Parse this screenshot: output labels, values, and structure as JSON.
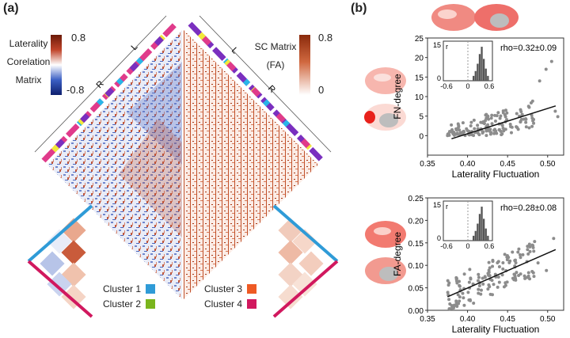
{
  "panel_a": {
    "label": "(a)",
    "left_colorbar": {
      "title_lines": [
        "Laterality",
        "Corelation",
        "Matrix"
      ],
      "max": "0.8",
      "min": "-0.8"
    },
    "right_colorbar": {
      "title_lines": [
        "SC Matrix",
        "(FA)"
      ],
      "max": "0.8",
      "min": "0"
    },
    "hemisphere_labels": {
      "left": "L",
      "right": "R"
    },
    "clusters": [
      {
        "name": "Cluster 1",
        "color": "#2f9bd7"
      },
      {
        "name": "Cluster 2",
        "color": "#7ab51d"
      },
      {
        "name": "Cluster 3",
        "color": "#ee5a24"
      },
      {
        "name": "Cluster 4",
        "color": "#d1185e"
      }
    ]
  },
  "panel_b": {
    "label": "(b)",
    "chart_data": [
      {
        "type": "scatter",
        "title": "",
        "xlabel": "Laterality Fluctuation",
        "ylabel": "FN-degree",
        "xlim": [
          0.35,
          0.52
        ],
        "ylim": [
          -5,
          25
        ],
        "xticks": [
          "0.35",
          "0.40",
          "0.45",
          "0.50"
        ],
        "yticks": [
          "0",
          "5",
          "10",
          "15",
          "20",
          "25"
        ],
        "fit_line": {
          "x": [
            0.38,
            0.51
          ],
          "y": [
            -0.8,
            7.6
          ]
        },
        "annotation": "rho=0.32±0.09",
        "inset": {
          "label": "r",
          "xticks": [
            "-0.6",
            "0",
            "0.6"
          ],
          "yticks": [
            "0",
            "15"
          ],
          "ylim": [
            0,
            15
          ]
        }
      },
      {
        "type": "scatter",
        "title": "",
        "xlabel": "Laterality Fluctuation",
        "ylabel": "FA-degree",
        "xlim": [
          0.35,
          0.52
        ],
        "ylim": [
          0,
          0.25
        ],
        "xticks": [
          "0.35",
          "0.40",
          "0.45",
          "0.50"
        ],
        "yticks": [
          "0.00",
          "0.05",
          "0.10",
          "0.15",
          "0.20",
          "0.25"
        ],
        "fit_line": {
          "x": [
            0.375,
            0.51
          ],
          "y": [
            0.03,
            0.135
          ]
        },
        "annotation": "rho=0.28±0.08",
        "inset": {
          "label": "r",
          "xticks": [
            "-0.6",
            "0",
            "0.6"
          ],
          "yticks": [
            "0",
            "15"
          ],
          "ylim": [
            0,
            15
          ]
        }
      }
    ]
  }
}
